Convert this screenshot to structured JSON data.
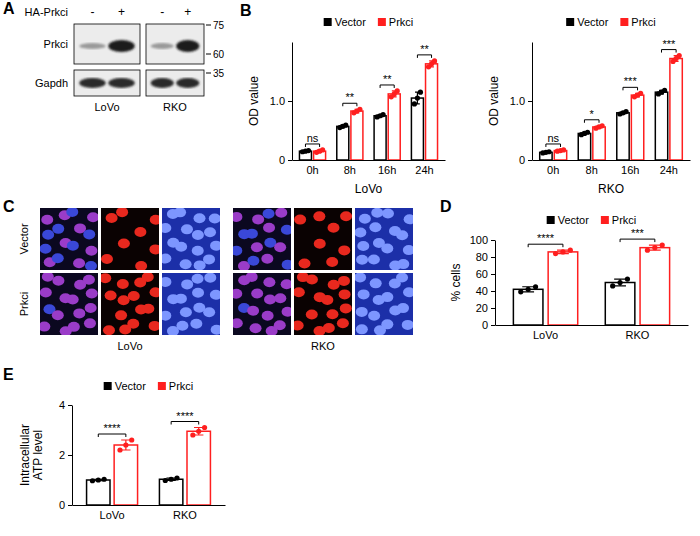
{
  "chart_data": [
    {
      "type": "bar",
      "panel": "B",
      "y_label": "OD value",
      "x_label": "LoVo",
      "categories": [
        "0h",
        "8h",
        "16h",
        "24h"
      ],
      "series": [
        {
          "name": "Vector",
          "color": "#000000",
          "values": [
            0.15,
            0.57,
            0.75,
            1.05
          ],
          "errors": [
            0.01,
            0.02,
            0.02,
            0.1
          ],
          "points": [
            [
              0.14,
              0.15,
              0.16
            ],
            [
              0.55,
              0.57,
              0.59
            ],
            [
              0.73,
              0.75,
              0.77
            ],
            [
              0.95,
              1.05,
              1.15
            ]
          ]
        },
        {
          "name": "Prkci",
          "color": "#ff1f1f",
          "values": [
            0.15,
            0.83,
            1.12,
            1.63
          ],
          "errors": [
            0.02,
            0.03,
            0.05,
            0.05
          ],
          "points": [
            [
              0.13,
              0.15,
              0.17
            ],
            [
              0.8,
              0.83,
              0.86
            ],
            [
              1.07,
              1.12,
              1.17
            ],
            [
              1.58,
              1.63,
              1.68
            ]
          ]
        }
      ],
      "annotations": [
        "ns",
        "**",
        "**",
        "**"
      ],
      "ylim": [
        0,
        2
      ],
      "yticks": [
        0,
        {
          "value": 1,
          "label": "1.0"
        }
      ],
      "legend": "top"
    },
    {
      "type": "bar",
      "y_label": "OD value",
      "x_label": "RKO",
      "categories": [
        "0h",
        "8h",
        "16h",
        "24h"
      ],
      "series": [
        {
          "name": "Vector",
          "color": "#000000",
          "values": [
            0.13,
            0.45,
            0.8,
            1.15
          ],
          "errors": [
            0.01,
            0.02,
            0.02,
            0.03
          ],
          "points": [
            [
              0.12,
              0.13,
              0.14
            ],
            [
              0.43,
              0.45,
              0.47
            ],
            [
              0.78,
              0.8,
              0.82
            ],
            [
              1.12,
              1.15,
              1.18
            ]
          ]
        },
        {
          "name": "Prkci",
          "color": "#ff1f1f",
          "values": [
            0.16,
            0.56,
            1.1,
            1.72
          ],
          "errors": [
            0.01,
            0.02,
            0.03,
            0.05
          ],
          "points": [
            [
              0.15,
              0.16,
              0.17
            ],
            [
              0.54,
              0.56,
              0.58
            ],
            [
              1.07,
              1.1,
              1.13
            ],
            [
              1.67,
              1.72,
              1.77
            ]
          ]
        }
      ],
      "annotations": [
        "ns",
        "*",
        "***",
        "***"
      ],
      "ylim": [
        0,
        2
      ],
      "yticks": [
        0,
        {
          "value": 1,
          "label": "1.0"
        }
      ],
      "legend": "top"
    },
    {
      "type": "bar",
      "panel": "D",
      "y_label": "% cells",
      "categories": [
        "LoVo",
        "RKO"
      ],
      "series": [
        {
          "name": "Vector",
          "color": "#000000",
          "values": [
            42,
            50
          ],
          "errors": [
            3,
            4
          ],
          "points": [
            [
              39,
              42,
              45
            ],
            [
              46,
              50,
              54
            ]
          ]
        },
        {
          "name": "Prkci",
          "color": "#ff1f1f",
          "values": [
            86,
            91
          ],
          "errors": [
            2,
            3
          ],
          "points": [
            [
              84,
              86,
              88
            ],
            [
              88,
              91,
              94
            ]
          ]
        }
      ],
      "annotations": [
        "****",
        "***"
      ],
      "ylim": [
        0,
        100
      ],
      "yticks": [
        0,
        20,
        40,
        60,
        80,
        100
      ],
      "legend": "top"
    },
    {
      "type": "bar",
      "panel": "E",
      "y_label": "Intracellular ATP level",
      "categories": [
        "LoVo",
        "RKO"
      ],
      "series": [
        {
          "name": "Vector",
          "color": "#000000",
          "values": [
            1.0,
            1.03
          ],
          "errors": [
            0.03,
            0.05
          ],
          "points": [
            [
              0.97,
              1.0,
              1.03
            ],
            [
              0.98,
              1.03,
              1.08
            ]
          ]
        },
        {
          "name": "Prkci",
          "color": "#ff1f1f",
          "values": [
            2.4,
            2.95
          ],
          "errors": [
            0.2,
            0.15
          ],
          "points": [
            [
              2.2,
              2.4,
              2.6
            ],
            [
              2.8,
              2.95,
              3.1
            ]
          ]
        }
      ],
      "annotations": [
        "****",
        "****"
      ],
      "ylim": [
        0,
        4
      ],
      "yticks": [
        0,
        2,
        4
      ],
      "legend": "top"
    }
  ],
  "blot": {
    "panel": "A",
    "treatment": "HA-Prkci",
    "lanes": [
      "-",
      "+"
    ],
    "proteins": [
      "Prkci",
      "Gapdh"
    ],
    "cell_lines": [
      "LoVo",
      "RKO"
    ],
    "markers": [
      75,
      60,
      35
    ]
  },
  "micrographs": {
    "panel": "C",
    "conditions": [
      "Vector",
      "Prkci"
    ],
    "cell_lines": [
      "LoVo",
      "RKO"
    ]
  }
}
